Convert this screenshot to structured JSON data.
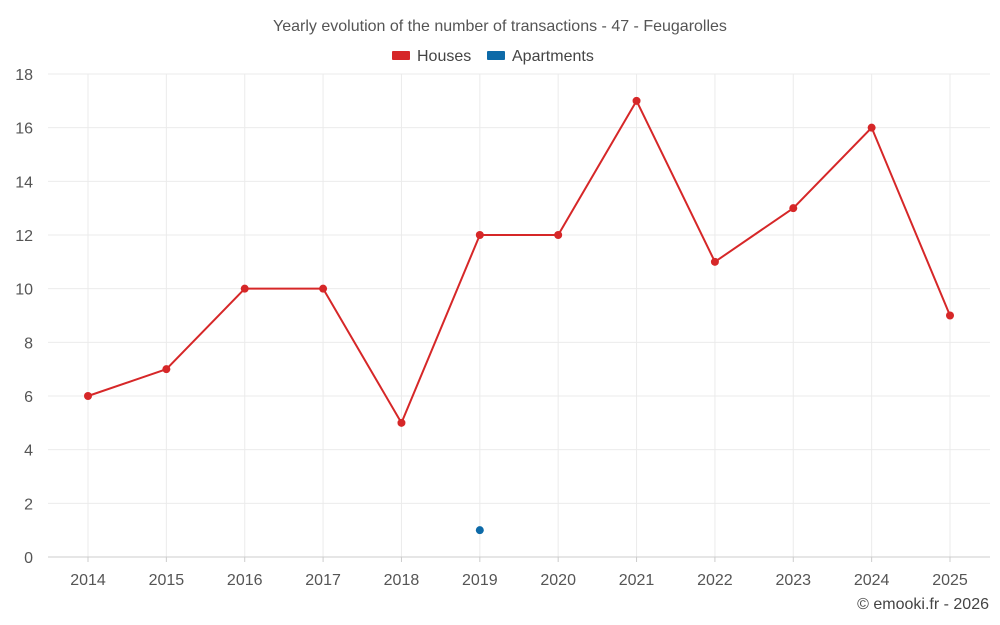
{
  "chart_data": {
    "type": "line",
    "title": "Yearly evolution of the number of transactions - 47 - Feugarolles",
    "categories": [
      "2014",
      "2015",
      "2016",
      "2017",
      "2018",
      "2019",
      "2020",
      "2021",
      "2022",
      "2023",
      "2024",
      "2025"
    ],
    "series": [
      {
        "name": "Houses",
        "color": "#d62728",
        "values": [
          6,
          7,
          10,
          10,
          5,
          12,
          12,
          17,
          11,
          13,
          16,
          9
        ]
      },
      {
        "name": "Apartments",
        "color": "#0d6aa8",
        "values": [
          null,
          null,
          null,
          null,
          null,
          1,
          null,
          null,
          null,
          null,
          null,
          null
        ]
      }
    ],
    "ylim": [
      0,
      18
    ],
    "yticks": [
      0,
      2,
      4,
      6,
      8,
      10,
      12,
      14,
      16,
      18
    ],
    "xlabel": "",
    "ylabel": "",
    "grid": true,
    "legend": "top-center"
  },
  "credit": "© emooki.fr - 2026"
}
